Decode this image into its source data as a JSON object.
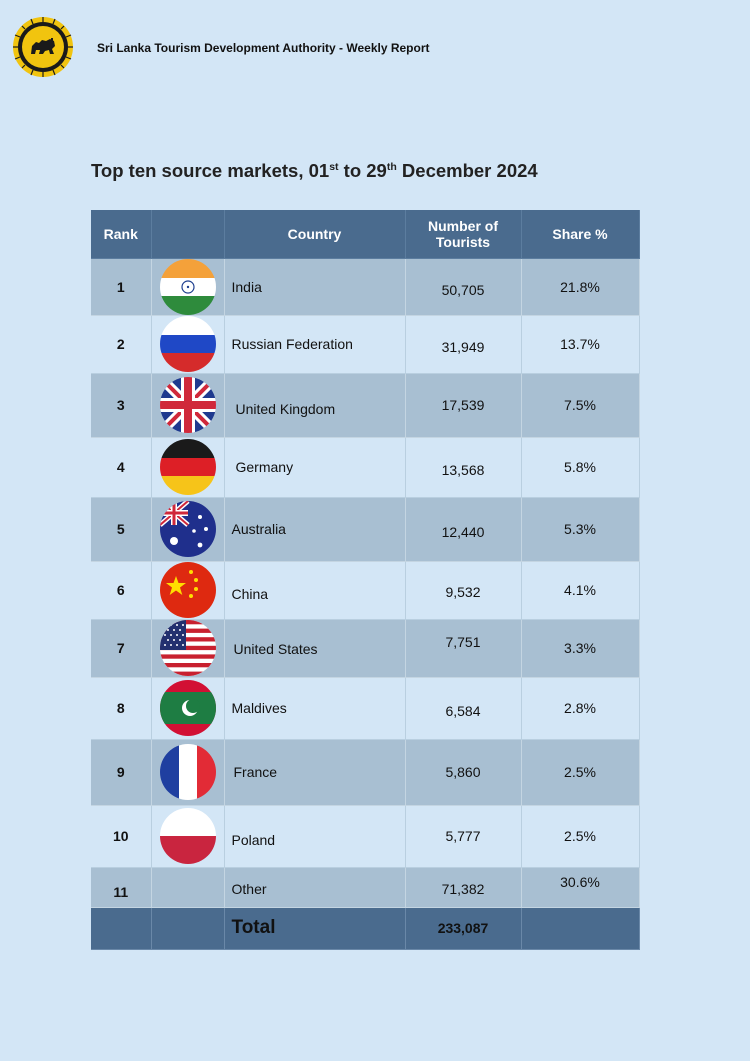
{
  "header": {
    "org_title": "Sri Lanka Tourism Development Authority - Weekly Report"
  },
  "report": {
    "title_part1": "Top ten source markets, 01",
    "title_sup1": "st",
    "title_part2": " to 29",
    "title_sup2": "th",
    "title_part3": " December 2024"
  },
  "table": {
    "headers": {
      "rank": "Rank",
      "country": "Country",
      "tourists": "Number of Tourists",
      "share": "Share %"
    },
    "rows": [
      {
        "rank": "1",
        "country": "India",
        "tourists": "50,705",
        "share": "21.8%",
        "flag_icon": "india-flag-icon"
      },
      {
        "rank": "2",
        "country": "Russian Federation",
        "tourists": "31,949",
        "share": "13.7%",
        "flag_icon": "russia-flag-icon"
      },
      {
        "rank": "3",
        "country": "United Kingdom",
        "tourists": "17,539",
        "share": "7.5%",
        "flag_icon": "uk-flag-icon"
      },
      {
        "rank": "4",
        "country": "Germany",
        "tourists": "13,568",
        "share": "5.8%",
        "flag_icon": "germany-flag-icon"
      },
      {
        "rank": "5",
        "country": "Australia",
        "tourists": "12,440",
        "share": "5.3%",
        "flag_icon": "australia-flag-icon"
      },
      {
        "rank": "6",
        "country": "China",
        "tourists": "9,532",
        "share": "4.1%",
        "flag_icon": "china-flag-icon"
      },
      {
        "rank": "7",
        "country": "United States",
        "tourists": "7,751",
        "share": "3.3%",
        "flag_icon": "usa-flag-icon"
      },
      {
        "rank": "8",
        "country": "Maldives",
        "tourists": "6,584",
        "share": "2.8%",
        "flag_icon": "maldives-flag-icon"
      },
      {
        "rank": "9",
        "country": "France",
        "tourists": "5,860",
        "share": "2.5%",
        "flag_icon": "france-flag-icon"
      },
      {
        "rank": "10",
        "country": "Poland",
        "tourists": "5,777",
        "share": "2.5%",
        "flag_icon": "poland-flag-icon"
      },
      {
        "rank": "11",
        "country": "Other",
        "tourists": "71,382",
        "share": "30.6%",
        "flag_icon": ""
      }
    ],
    "total": {
      "label": "Total",
      "tourists": "233,087"
    }
  },
  "colors": {
    "page_bg": "#d3e6f6",
    "header_bg": "#4a6b8e",
    "alt_row_bg": "#a8bfd2"
  }
}
